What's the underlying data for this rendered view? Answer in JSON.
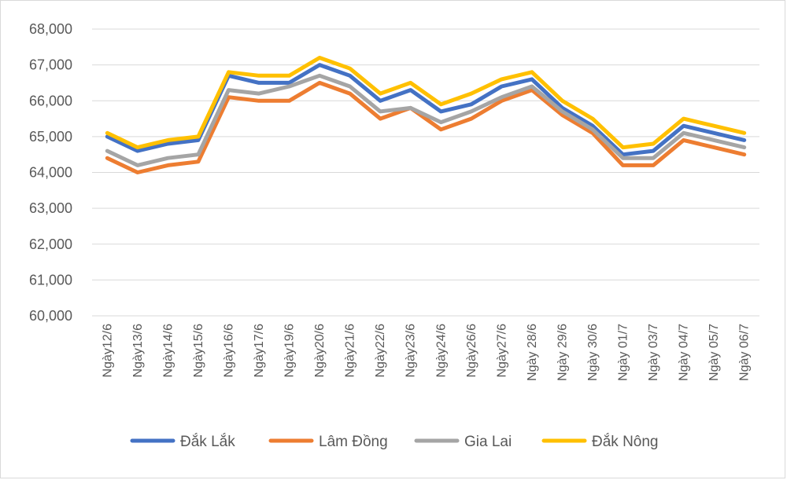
{
  "chart_data": {
    "type": "line",
    "title": "",
    "xlabel": "",
    "ylabel": "",
    "ylim": [
      60000,
      68000
    ],
    "yticks": [
      60000,
      61000,
      62000,
      63000,
      64000,
      65000,
      66000,
      67000,
      68000
    ],
    "ytick_labels": [
      "60,000",
      "61,000",
      "62,000",
      "63,000",
      "64,000",
      "65,000",
      "66,000",
      "67,000",
      "68,000"
    ],
    "grid": true,
    "legend_position": "bottom",
    "categories": [
      "Ngày12/6",
      "Ngày13/6",
      "Ngày14/6",
      "Ngày15/6",
      "Ngày16/6",
      "Ngày17/6",
      "Ngày19/6",
      "Ngày20/6",
      "Ngày21/6",
      "Ngày22/6",
      "Ngày23/6",
      "Ngày24/6",
      "Ngày26/6",
      "Ngày27/6",
      "Ngày 28/6",
      "Ngày 29/6",
      "Ngày 30/6",
      "Ngày 01/7",
      "Ngày 03/7",
      "Ngày 04/7",
      "Ngày 05/7",
      "Ngày 06/7"
    ],
    "series": [
      {
        "name": "Đắk Lắk",
        "color": "#4472C4",
        "values": [
          65000,
          64600,
          64800,
          64900,
          66700,
          66500,
          66500,
          67000,
          66700,
          66000,
          66300,
          65700,
          65900,
          66400,
          66600,
          65800,
          65300,
          64500,
          64600,
          65300,
          65100,
          64900
        ]
      },
      {
        "name": "Lâm Đồng",
        "color": "#ED7D31",
        "values": [
          64400,
          64000,
          64200,
          64300,
          66100,
          66000,
          66000,
          66500,
          66200,
          65500,
          65800,
          65200,
          65500,
          66000,
          66300,
          65600,
          65100,
          64200,
          64200,
          64900,
          64700,
          64500
        ]
      },
      {
        "name": "Gia Lai",
        "color": "#A5A5A5",
        "values": [
          64600,
          64200,
          64400,
          64500,
          66300,
          66200,
          66400,
          66700,
          66400,
          65700,
          65800,
          65400,
          65700,
          66100,
          66400,
          65700,
          65200,
          64400,
          64400,
          65100,
          64900,
          64700
        ]
      },
      {
        "name": "Đắk Nông",
        "color": "#FFC000",
        "values": [
          65100,
          64700,
          64900,
          65000,
          66800,
          66700,
          66700,
          67200,
          66900,
          66200,
          66500,
          65900,
          66200,
          66600,
          66800,
          66000,
          65500,
          64700,
          64800,
          65500,
          65300,
          65100
        ]
      }
    ]
  }
}
